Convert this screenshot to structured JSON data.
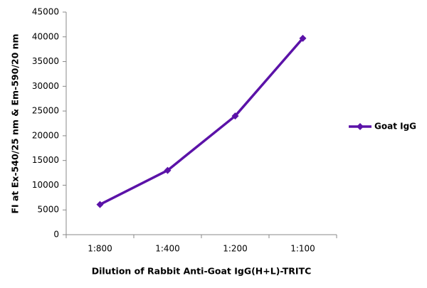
{
  "chart_data": {
    "type": "line",
    "x_label": "Dilution of Rabbit Anti-Goat IgG(H+L)-TRITC",
    "y_label": "FI at Ex-540/25 nm & Em-590/20 nm",
    "categories": [
      "1:800",
      "1:400",
      "1:200",
      "1:100"
    ],
    "series": [
      {
        "name": "Goat IgG",
        "color": "#5b12a8",
        "values": [
          6100,
          13000,
          24000,
          39700
        ]
      }
    ],
    "ylim": [
      0,
      45000
    ],
    "yticks": [
      0,
      5000,
      10000,
      15000,
      20000,
      25000,
      30000,
      35000,
      40000,
      45000
    ],
    "grid": false,
    "legend": "right"
  }
}
